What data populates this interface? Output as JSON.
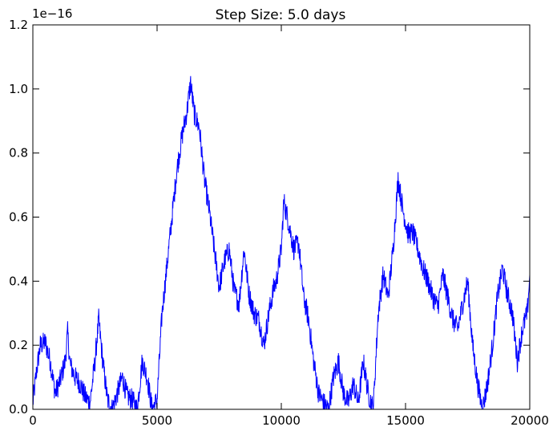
{
  "chart_data": {
    "type": "line",
    "title": "Step Size: 5.0 days",
    "xlabel": "",
    "ylabel": "",
    "y_exponent_label": "1e−16",
    "xlim": [
      0,
      20000
    ],
    "ylim": [
      0,
      1.2
    ],
    "xticks": [
      0,
      5000,
      10000,
      15000,
      20000
    ],
    "xtick_labels": [
      "0",
      "5000",
      "10000",
      "15000",
      "20000"
    ],
    "yticks": [
      0.0,
      0.2,
      0.4,
      0.6,
      0.8,
      1.0,
      1.2
    ],
    "ytick_labels": [
      "0.0",
      "0.2",
      "0.4",
      "0.6",
      "0.8",
      "1.0",
      "1.2"
    ],
    "grid": false,
    "series": [
      {
        "color": "#0000ff",
        "noise": 0.035,
        "x": [
          0,
          150,
          300,
          500,
          700,
          900,
          1100,
          1300,
          1400,
          1500,
          1700,
          1900,
          2100,
          2300,
          2500,
          2650,
          2800,
          3000,
          3200,
          3400,
          3600,
          3800,
          4000,
          4200,
          4400,
          4600,
          4800,
          5000,
          5200,
          5400,
          5600,
          5800,
          6000,
          6200,
          6350,
          6500,
          6700,
          6900,
          7100,
          7300,
          7500,
          7700,
          7900,
          8100,
          8300,
          8500,
          8700,
          8900,
          9100,
          9300,
          9500,
          9700,
          9800,
          10000,
          10100,
          10300,
          10500,
          10700,
          10900,
          11100,
          11300,
          11500,
          11700,
          11900,
          12100,
          12300,
          12500,
          12700,
          12900,
          13100,
          13300,
          13500,
          13700,
          13900,
          14100,
          14300,
          14500,
          14700,
          14900,
          15100,
          15300,
          15500,
          15700,
          15900,
          16100,
          16300,
          16500,
          16700,
          16900,
          17100,
          17300,
          17500,
          17700,
          17900,
          18100,
          18300,
          18500,
          18700,
          18900,
          19100,
          19300,
          19500,
          19700,
          19900,
          20000
        ],
        "y": [
          0.02,
          0.12,
          0.2,
          0.21,
          0.15,
          0.05,
          0.09,
          0.15,
          0.24,
          0.14,
          0.1,
          0.08,
          0.04,
          0.02,
          0.15,
          0.28,
          0.16,
          0.03,
          0.0,
          0.05,
          0.1,
          0.04,
          0.03,
          0.0,
          0.15,
          0.1,
          0.0,
          0.03,
          0.3,
          0.45,
          0.6,
          0.75,
          0.85,
          0.93,
          1.02,
          0.92,
          0.88,
          0.72,
          0.62,
          0.5,
          0.38,
          0.46,
          0.5,
          0.37,
          0.33,
          0.5,
          0.36,
          0.3,
          0.28,
          0.2,
          0.3,
          0.38,
          0.4,
          0.5,
          0.65,
          0.58,
          0.5,
          0.52,
          0.35,
          0.28,
          0.15,
          0.05,
          0.02,
          0.0,
          0.1,
          0.15,
          0.05,
          0.02,
          0.08,
          0.02,
          0.15,
          0.05,
          0.0,
          0.3,
          0.42,
          0.35,
          0.5,
          0.72,
          0.62,
          0.55,
          0.55,
          0.5,
          0.44,
          0.4,
          0.35,
          0.32,
          0.42,
          0.35,
          0.28,
          0.25,
          0.33,
          0.4,
          0.2,
          0.08,
          0.0,
          0.08,
          0.2,
          0.35,
          0.44,
          0.36,
          0.3,
          0.15,
          0.25,
          0.3,
          0.42
        ]
      }
    ]
  }
}
